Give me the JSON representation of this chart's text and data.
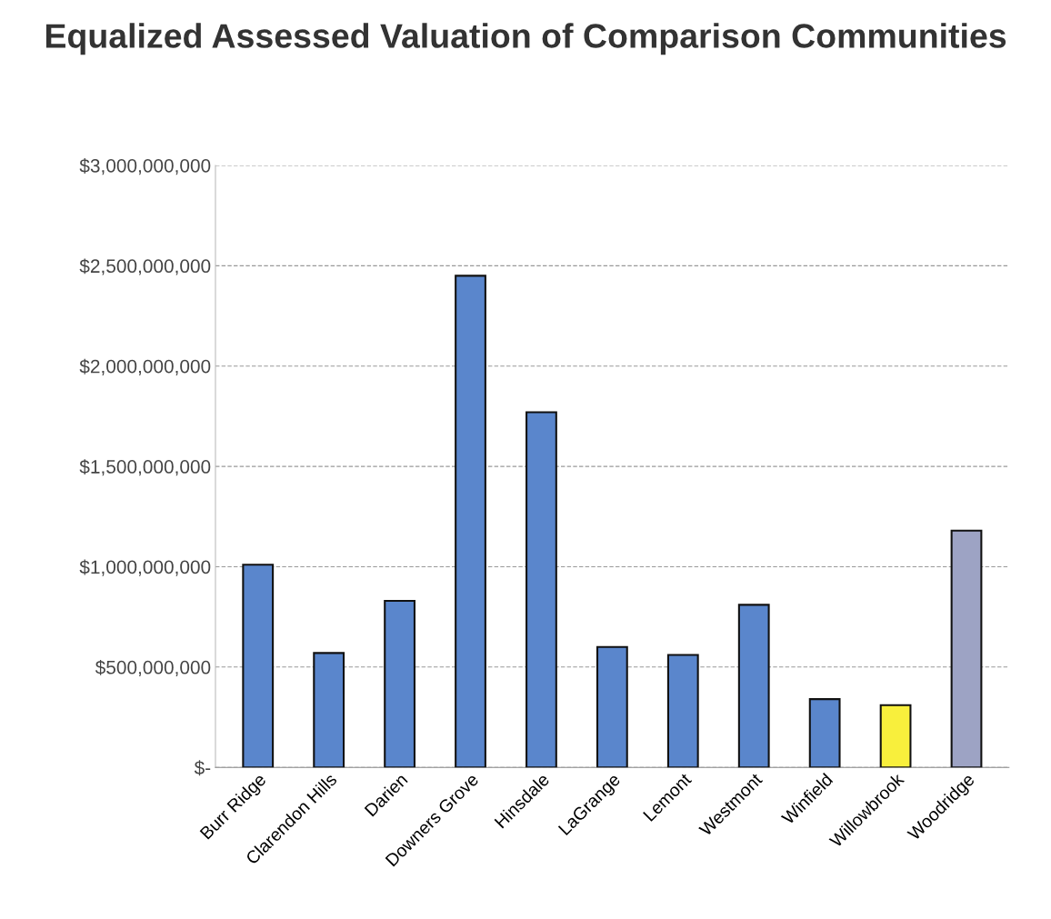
{
  "chart_data": {
    "type": "bar",
    "title": "Equalized Assessed Valuation of Comparison Communities",
    "categories": [
      "Burr Ridge",
      "Clarendon Hills",
      "Darien",
      "Downers Grove",
      "Hinsdale",
      "LaGrange",
      "Lemont",
      "Westmont",
      "Winfield",
      "Willowbrook",
      "Woodridge"
    ],
    "values": [
      1010000000,
      570000000,
      830000000,
      2450000000,
      1770000000,
      600000000,
      560000000,
      810000000,
      340000000,
      310000000,
      1180000000
    ],
    "colors": [
      "#5a86cc",
      "#5a86cc",
      "#5a86cc",
      "#5a86cc",
      "#5a86cc",
      "#5a86cc",
      "#5a86cc",
      "#5a86cc",
      "#5a86cc",
      "#f8ef3c",
      "#9da3c4"
    ],
    "ylim": [
      0,
      3000000000
    ],
    "yticks": [
      {
        "value": 0,
        "label": "$-"
      },
      {
        "value": 500000000,
        "label": "$500,000,000"
      },
      {
        "value": 1000000000,
        "label": "$1,000,000,000"
      },
      {
        "value": 1500000000,
        "label": "$1,500,000,000"
      },
      {
        "value": 2000000000,
        "label": "$2,000,000,000"
      },
      {
        "value": 2500000000,
        "label": "$2,500,000,000"
      },
      {
        "value": 3000000000,
        "label": "$3,000,000,000"
      }
    ],
    "grid": "y"
  }
}
